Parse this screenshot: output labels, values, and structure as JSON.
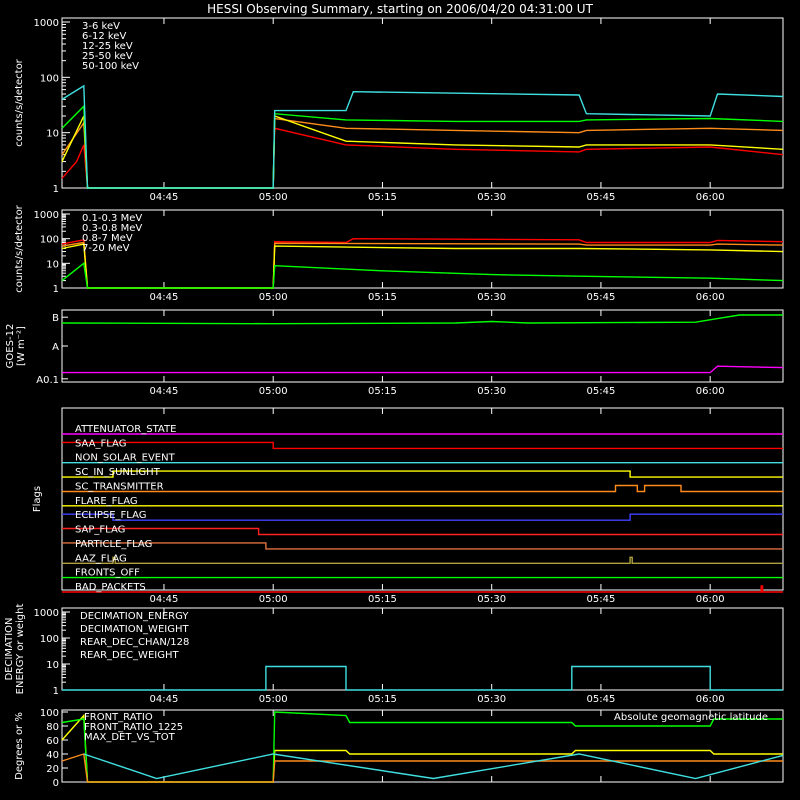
{
  "title": "HESSI Observing Summary, starting on 2006/04/20 04:31:00 UT",
  "time_ticks": [
    "04:45",
    "05:00",
    "05:15",
    "05:30",
    "05:45",
    "06:00"
  ],
  "time_range": [
    "04:31",
    "06:10"
  ],
  "colors": {
    "red": "#ff0000",
    "orange": "#ff8c1a",
    "yellow": "#ffff00",
    "green": "#00ff00",
    "cyan": "#40e0e0",
    "magenta": "#ff00ff",
    "blue": "#0000ff",
    "olive": "#b0a040",
    "tan": "#e07040",
    "white": "#ffffff"
  },
  "chart_data": [
    {
      "type": "line",
      "id": "xray-low",
      "ylabel": "counts/s/detector",
      "ylim": [
        1,
        1000
      ],
      "yscale": "log",
      "yticks": [
        "1",
        "10",
        "100",
        "1000"
      ],
      "series": [
        {
          "name": "3-6 keV",
          "color": "#ff0000",
          "points": [
            [
              "04:31",
              1.5
            ],
            [
              "04:33",
              3
            ],
            [
              "04:34",
              6
            ],
            [
              "04:34.5",
              1
            ],
            [
              "05:00",
              1
            ],
            [
              "05:00.2",
              12
            ],
            [
              "05:10",
              6
            ],
            [
              "05:25",
              5
            ],
            [
              "05:42",
              4.5
            ],
            [
              "05:43",
              5
            ],
            [
              "06:00",
              5.5
            ],
            [
              "06:10",
              4
            ]
          ]
        },
        {
          "name": "6-12 keV",
          "color": "#ff8c1a",
          "points": [
            [
              "04:31",
              4
            ],
            [
              "04:34",
              15
            ],
            [
              "04:34.5",
              1
            ],
            [
              "05:00",
              1
            ],
            [
              "05:00.2",
              18
            ],
            [
              "05:10",
              12
            ],
            [
              "05:25",
              11
            ],
            [
              "05:42",
              10
            ],
            [
              "05:43",
              11
            ],
            [
              "06:00",
              12
            ],
            [
              "06:10",
              11
            ]
          ]
        },
        {
          "name": "12-25 keV",
          "color": "#ffff00",
          "points": [
            [
              "04:31",
              3
            ],
            [
              "04:34",
              20
            ],
            [
              "04:34.5",
              1
            ],
            [
              "05:00",
              1
            ],
            [
              "05:00.2",
              20
            ],
            [
              "05:10",
              7
            ],
            [
              "05:25",
              6
            ],
            [
              "05:42",
              5.5
            ],
            [
              "05:43",
              6
            ],
            [
              "06:00",
              6
            ],
            [
              "06:10",
              5
            ]
          ]
        },
        {
          "name": "25-50 keV",
          "color": "#00ff00",
          "points": [
            [
              "04:31",
              12
            ],
            [
              "04:34",
              30
            ],
            [
              "04:34.5",
              1
            ],
            [
              "05:00",
              1
            ],
            [
              "05:00.2",
              22
            ],
            [
              "05:10",
              17
            ],
            [
              "05:25",
              16
            ],
            [
              "05:42",
              16
            ],
            [
              "05:43",
              17
            ],
            [
              "06:00",
              18
            ],
            [
              "06:10",
              16
            ]
          ]
        },
        {
          "name": "50-100 keV",
          "color": "#40e0e0",
          "points": [
            [
              "04:31",
              40
            ],
            [
              "04:34",
              70
            ],
            [
              "04:34.5",
              1
            ],
            [
              "05:00",
              1
            ],
            [
              "05:00.2",
              25
            ],
            [
              "05:10",
              25
            ],
            [
              "05:11",
              55
            ],
            [
              "05:42",
              48
            ],
            [
              "05:43",
              22
            ],
            [
              "06:00",
              20
            ],
            [
              "06:01",
              50
            ],
            [
              "06:10",
              45
            ]
          ]
        }
      ]
    },
    {
      "type": "line",
      "id": "xray-high",
      "ylabel": "counts/s/detector",
      "ylim": [
        1,
        1000
      ],
      "yscale": "log",
      "yticks": [
        "1",
        "10",
        "100",
        "1000"
      ],
      "series": [
        {
          "name": "0.1-0.3 MeV",
          "color": "#ff0000",
          "points": [
            [
              "04:31",
              60
            ],
            [
              "04:34",
              90
            ],
            [
              "04:34.5",
              1
            ],
            [
              "05:00",
              1
            ],
            [
              "05:00.2",
              75
            ],
            [
              "05:10",
              70
            ],
            [
              "05:11",
              100
            ],
            [
              "05:42",
              90
            ],
            [
              "05:43",
              70
            ],
            [
              "06:00",
              70
            ],
            [
              "06:01",
              85
            ],
            [
              "06:10",
              75
            ]
          ]
        },
        {
          "name": "0.3-0.8 MeV",
          "color": "#ff8c1a",
          "points": [
            [
              "04:31",
              50
            ],
            [
              "04:34",
              70
            ],
            [
              "04:34.5",
              1
            ],
            [
              "05:00",
              1
            ],
            [
              "05:00.2",
              65
            ],
            [
              "05:42",
              60
            ],
            [
              "05:43",
              55
            ],
            [
              "06:00",
              55
            ],
            [
              "06:01",
              60
            ],
            [
              "06:10",
              55
            ]
          ]
        },
        {
          "name": "0.8-7 MeV",
          "color": "#ffff00",
          "points": [
            [
              "04:31",
              40
            ],
            [
              "04:34",
              60
            ],
            [
              "04:34.5",
              1
            ],
            [
              "05:00",
              1
            ],
            [
              "05:00.2",
              50
            ],
            [
              "05:25",
              40
            ],
            [
              "05:42",
              40
            ],
            [
              "06:00",
              35
            ],
            [
              "06:10",
              30
            ]
          ]
        },
        {
          "name": "7-20 MeV",
          "color": "#00ff00",
          "points": [
            [
              "04:31",
              2
            ],
            [
              "04:34",
              10
            ],
            [
              "04:34.5",
              1
            ],
            [
              "05:00",
              1
            ],
            [
              "05:00.2",
              8
            ],
            [
              "05:15",
              5
            ],
            [
              "05:30",
              3.5
            ],
            [
              "05:42",
              3
            ],
            [
              "06:00",
              2.5
            ],
            [
              "06:10",
              2
            ]
          ]
        }
      ]
    },
    {
      "type": "line",
      "id": "goes",
      "ylabel": "GOES-12",
      "ylabel2": "[W m⁻²]",
      "yticks": [
        "A0.1",
        "A",
        "B"
      ],
      "series": [
        {
          "name": "long",
          "color": "#00ff00",
          "points": [
            [
              "04:31",
              8.2
            ],
            [
              "05:00",
              8.1
            ],
            [
              "05:25",
              8.2
            ],
            [
              "05:30",
              8.4
            ],
            [
              "05:35",
              8.2
            ],
            [
              "05:58",
              8.3
            ],
            [
              "06:01",
              8.8
            ],
            [
              "06:04",
              9.3
            ],
            [
              "06:10",
              9.3
            ]
          ]
        },
        {
          "name": "short",
          "color": "#ff00ff",
          "points": [
            [
              "04:31",
              1.3
            ],
            [
              "06:00",
              1.3
            ],
            [
              "06:01",
              2.2
            ],
            [
              "06:10",
              2.0
            ]
          ]
        }
      ]
    },
    {
      "type": "line",
      "id": "flags",
      "ylabel": "Flags",
      "series": [
        {
          "name": "ATTENUATOR_STATE",
          "color": "#ff00ff",
          "steps": [
            [
              "04:31",
              0
            ],
            [
              "06:10",
              0
            ]
          ]
        },
        {
          "name": "SAA_FLAG",
          "color": "#ff0000",
          "steps": [
            [
              "04:31",
              1
            ],
            [
              "05:00",
              0
            ],
            [
              "06:10",
              0
            ]
          ]
        },
        {
          "name": "NON_SOLAR_EVENT",
          "color": "#40e0e0",
          "steps": [
            [
              "04:31",
              0
            ],
            [
              "06:10",
              0
            ]
          ]
        },
        {
          "name": "SC_IN_SUNLIGHT",
          "color": "#ffff00",
          "steps": [
            [
              "04:31",
              0
            ],
            [
              "04:38",
              1
            ],
            [
              "05:49",
              0
            ],
            [
              "06:10",
              0
            ]
          ]
        },
        {
          "name": "SC_TRANSMITTER",
          "color": "#ff8c1a",
          "steps": [
            [
              "04:31",
              0
            ],
            [
              "05:47",
              1
            ],
            [
              "05:50",
              0
            ],
            [
              "05:51",
              1
            ],
            [
              "05:56",
              0
            ],
            [
              "06:10",
              0
            ]
          ]
        },
        {
          "name": "FLARE_FLAG",
          "color": "#ffff00",
          "steps": [
            [
              "04:31",
              0
            ],
            [
              "06:10",
              0
            ]
          ]
        },
        {
          "name": "ECLIPSE_FLAG",
          "color": "#4040ff",
          "steps": [
            [
              "04:31",
              1
            ],
            [
              "04:38",
              0
            ],
            [
              "05:49",
              1
            ],
            [
              "06:10",
              1
            ]
          ]
        },
        {
          "name": "SAP_FLAG",
          "color": "#ff2020",
          "steps": [
            [
              "04:31",
              1
            ],
            [
              "04:58",
              0
            ],
            [
              "06:10",
              0
            ]
          ]
        },
        {
          "name": "PARTICLE_FLAG",
          "color": "#e07040",
          "steps": [
            [
              "04:31",
              1
            ],
            [
              "04:59",
              0
            ],
            [
              "06:10",
              0
            ]
          ]
        },
        {
          "name": "AAZ_FLAG",
          "color": "#b0a040",
          "steps": [
            [
              "04:31",
              0
            ],
            [
              "04:38",
              1
            ],
            [
              "04:38.3",
              0
            ],
            [
              "05:49",
              1
            ],
            [
              "05:49.3",
              0
            ],
            [
              "06:10",
              0
            ]
          ]
        },
        {
          "name": "FRONTS_OFF",
          "color": "#00ff00",
          "steps": [
            [
              "04:31",
              0
            ],
            [
              "06:10",
              0
            ]
          ]
        },
        {
          "name": "BAD_PACKETS",
          "color": "#ff0000",
          "steps": [
            [
              "04:31",
              0
            ],
            [
              "06:07",
              1
            ],
            [
              "06:07.2",
              0
            ],
            [
              "06:10",
              0
            ]
          ]
        }
      ]
    },
    {
      "type": "line",
      "id": "decimation",
      "ylabel": "DECIMATION",
      "ylabel2": "ENERGY or weight",
      "ylim": [
        1,
        1000
      ],
      "yscale": "log",
      "yticks": [
        "1",
        "10",
        "100",
        "1000"
      ],
      "series": [
        {
          "name": "DECIMATION_ENERGY",
          "color": "#00ff00",
          "points": []
        },
        {
          "name": "DECIMATION_WEIGHT",
          "color": "#ff8c1a",
          "points": []
        },
        {
          "name": "REAR_DEC_CHAN/128",
          "color": "#40e0e0",
          "steps": [
            [
              "04:31",
              1
            ],
            [
              "04:59",
              1
            ],
            [
              "04:59",
              8
            ],
            [
              "05:10",
              8
            ],
            [
              "05:10",
              1
            ],
            [
              "05:41",
              1
            ],
            [
              "05:41",
              8
            ],
            [
              "06:00",
              8
            ],
            [
              "06:00",
              1
            ],
            [
              "06:10",
              1
            ]
          ]
        },
        {
          "name": "REAR_DEC_WEIGHT",
          "color": "#b0a040",
          "points": []
        }
      ]
    },
    {
      "type": "line",
      "id": "ratios",
      "ylabel": "Degrees or %",
      "ylim": [
        0,
        100
      ],
      "yticks": [
        "0",
        "20",
        "40",
        "60",
        "80",
        "100"
      ],
      "annotation": "Absolute geomagnetic latitude",
      "series": [
        {
          "name": "FRONT_RATIO",
          "color": "#ffff00",
          "points": [
            [
              "04:31",
              60
            ],
            [
              "04:34",
              95
            ],
            [
              "04:34.5",
              0
            ],
            [
              "05:00",
              0
            ],
            [
              "05:00.2",
              45
            ],
            [
              "05:10",
              45
            ],
            [
              "05:10.5",
              40
            ],
            [
              "05:41",
              40
            ],
            [
              "05:41.5",
              45
            ],
            [
              "06:00",
              45
            ],
            [
              "06:00.5",
              40
            ],
            [
              "06:10",
              40
            ]
          ]
        },
        {
          "name": "FRONT_RATIO_1225",
          "color": "#00ff00",
          "points": [
            [
              "04:31",
              85
            ],
            [
              "04:34",
              90
            ],
            [
              "04:34.5",
              0
            ],
            [
              "05:00",
              0
            ],
            [
              "05:00.2",
              100
            ],
            [
              "05:10",
              95
            ],
            [
              "05:10.5",
              85
            ],
            [
              "05:41",
              85
            ],
            [
              "05:41.5",
              80
            ],
            [
              "06:00",
              80
            ],
            [
              "06:00.5",
              90
            ],
            [
              "06:10",
              90
            ]
          ]
        },
        {
          "name": "MAX_DET_VS_TOT",
          "color": "#ff8c1a",
          "points": [
            [
              "04:31",
              30
            ],
            [
              "04:34",
              40
            ],
            [
              "04:34.5",
              0
            ],
            [
              "05:00",
              0
            ],
            [
              "05:00.2",
              30
            ],
            [
              "05:42",
              30
            ],
            [
              "06:10",
              30
            ]
          ]
        },
        {
          "name": "Absolute geomagnetic latitude",
          "color": "#40e0e0",
          "points": [
            [
              "04:34",
              40
            ],
            [
              "04:44",
              5
            ],
            [
              "05:00",
              40
            ],
            [
              "05:22",
              5
            ],
            [
              "05:42",
              40
            ],
            [
              "05:58",
              5
            ],
            [
              "06:10",
              38
            ]
          ]
        }
      ]
    }
  ]
}
